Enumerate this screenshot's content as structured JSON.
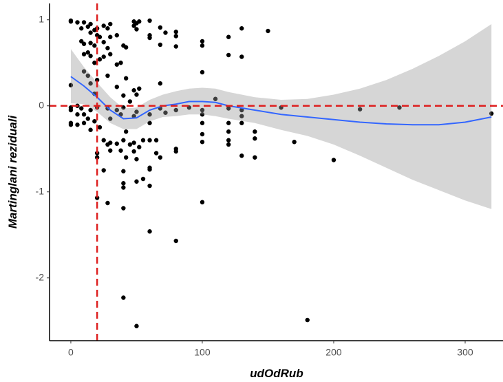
{
  "chart_data": {
    "type": "scatter",
    "x_label": "udOdRub",
    "y_label": "Martinglani reziduali",
    "xlim": [
      -16.2,
      328.8
    ],
    "ylim": [
      -2.73,
      1.19
    ],
    "xticks": [
      0,
      100,
      200,
      300
    ],
    "yticks": [
      -2,
      -1,
      0,
      1
    ],
    "reference_lines": {
      "x": 20,
      "y": 0,
      "color": "#dd1f1f"
    },
    "points": {
      "color": "#000000",
      "x": [
        0,
        0,
        0,
        0,
        0,
        0,
        0,
        5,
        5,
        5,
        5,
        8,
        8,
        8,
        10,
        10,
        10,
        10,
        10,
        10,
        13,
        13,
        13,
        13,
        15,
        15,
        15,
        15,
        15,
        15,
        15,
        18,
        18,
        18,
        18,
        18,
        20,
        20,
        20,
        20,
        20,
        20,
        20,
        22,
        22,
        22,
        25,
        25,
        25,
        25,
        25,
        28,
        28,
        28,
        28,
        28,
        28,
        30,
        30,
        30,
        30,
        30,
        30,
        35,
        35,
        35,
        35,
        35,
        38,
        38,
        38,
        40,
        40,
        40,
        40,
        40,
        40,
        40,
        40,
        40,
        42,
        42,
        42,
        42,
        45,
        45,
        48,
        48,
        48,
        48,
        48,
        48,
        50,
        50,
        50,
        50,
        50,
        50,
        50,
        52,
        52,
        52,
        55,
        55,
        60,
        60,
        60,
        60,
        60,
        60,
        60,
        60,
        60,
        60,
        65,
        65,
        68,
        68,
        68,
        68,
        68,
        72,
        72,
        80,
        80,
        80,
        80,
        80,
        80,
        80,
        90,
        100,
        100,
        100,
        100,
        100,
        100,
        100,
        100,
        100,
        110,
        120,
        120,
        120,
        120,
        120,
        120,
        120,
        130,
        130,
        130,
        130,
        130,
        130,
        140,
        140,
        140,
        150,
        160,
        170,
        180,
        200,
        220,
        250,
        320
      ],
      "y": [
        0.99,
        0.98,
        0.24,
        -0.02,
        -0.05,
        -0.2,
        -0.22,
        0.97,
        0.0,
        -0.1,
        -0.22,
        0.9,
        0.75,
        -0.03,
        0.97,
        0.72,
        0.6,
        0.4,
        -0.1,
        -0.2,
        0.92,
        0.62,
        0.35,
        -0.15,
        0.95,
        0.85,
        0.73,
        0.58,
        0.26,
        -0.05,
        -0.28,
        0.88,
        0.7,
        0.5,
        0.14,
        -0.18,
        0.9,
        0.82,
        0.3,
        -0.02,
        -0.55,
        -0.6,
        -1.07,
        0.8,
        0.54,
        -0.25,
        0.93,
        0.74,
        0.57,
        -0.4,
        -0.75,
        0.9,
        0.67,
        0.35,
        -0.03,
        -0.45,
        -1.13,
        0.95,
        0.8,
        0.6,
        -0.15,
        -0.43,
        -0.52,
        0.82,
        0.48,
        0.22,
        -0.05,
        -0.44,
        0.5,
        -0.1,
        -0.52,
        0.7,
        0.12,
        -0.02,
        -0.4,
        -0.76,
        -0.9,
        -0.95,
        -1.19,
        -2.23,
        0.68,
        0.32,
        -0.3,
        -0.6,
        0.05,
        -0.45,
        0.98,
        0.93,
        0.18,
        -0.12,
        -0.43,
        -0.53,
        0.96,
        0.89,
        0.13,
        -0.07,
        -0.62,
        -0.88,
        -2.56,
        0.98,
        0.2,
        -0.48,
        -0.85,
        -0.4,
        0.99,
        0.82,
        0.79,
        -0.1,
        -0.2,
        -0.4,
        -0.72,
        -0.74,
        -0.93,
        -1.46,
        -0.4,
        -0.55,
        0.91,
        0.71,
        0.26,
        -0.03,
        -0.6,
        0.85,
        -0.08,
        0.86,
        0.81,
        0.69,
        -0.05,
        -0.5,
        -0.53,
        -1.57,
        -0.02,
        0.75,
        0.7,
        0.39,
        -0.05,
        -0.1,
        -0.2,
        -0.33,
        -0.42,
        -1.12,
        0.08,
        0.8,
        0.59,
        -0.03,
        -0.2,
        -0.3,
        -0.4,
        -0.45,
        0.9,
        0.57,
        -0.05,
        -0.12,
        -0.2,
        -0.58,
        -0.3,
        -0.38,
        -0.6,
        0.87,
        -0.02,
        -0.42,
        -2.49,
        -0.63,
        -0.04,
        -0.02,
        -0.09
      ]
    },
    "smooth": {
      "color": "#3366ff",
      "band_color": "#999999",
      "x": [
        0,
        10,
        20,
        30,
        40,
        50,
        60,
        70,
        80,
        90,
        100,
        110,
        120,
        140,
        160,
        180,
        200,
        220,
        240,
        260,
        280,
        300,
        320
      ],
      "y": [
        0.34,
        0.23,
        0.1,
        -0.05,
        -0.15,
        -0.14,
        -0.05,
        0.0,
        0.02,
        0.05,
        0.05,
        0.04,
        0.0,
        -0.05,
        -0.1,
        -0.13,
        -0.16,
        -0.19,
        -0.21,
        -0.22,
        -0.22,
        -0.19,
        -0.13
      ],
      "upper": [
        0.66,
        0.45,
        0.27,
        0.1,
        -0.03,
        -0.02,
        0.07,
        0.13,
        0.17,
        0.2,
        0.21,
        0.2,
        0.16,
        0.1,
        0.07,
        0.08,
        0.13,
        0.2,
        0.3,
        0.43,
        0.58,
        0.75,
        0.95
      ],
      "lower": [
        0.03,
        0.02,
        -0.07,
        -0.2,
        -0.27,
        -0.27,
        -0.18,
        -0.13,
        -0.12,
        -0.1,
        -0.1,
        -0.12,
        -0.15,
        -0.2,
        -0.28,
        -0.35,
        -0.45,
        -0.58,
        -0.72,
        -0.86,
        -0.98,
        -1.1,
        -1.2
      ]
    }
  }
}
